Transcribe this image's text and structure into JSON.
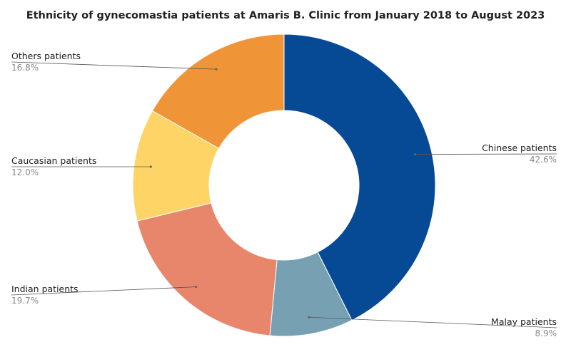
{
  "chart_data": {
    "type": "pie",
    "title": "Ethnicity of gynecomastia patients at Amaris B. Clinic from January 2018 to August 2023",
    "categories": [
      "Chinese patients",
      "Malay patients",
      "Indian patients",
      "Caucasian patients",
      "Others patients"
    ],
    "values": [
      42.6,
      8.9,
      19.7,
      12.0,
      16.8
    ],
    "value_labels": [
      "42.6%",
      "8.9%",
      "19.7%",
      "12.0%",
      "16.8%"
    ],
    "colors": [
      "#064a96",
      "#77a1b3",
      "#e8866c",
      "#fed466",
      "#f09537"
    ],
    "hole": true,
    "legend": "none"
  }
}
